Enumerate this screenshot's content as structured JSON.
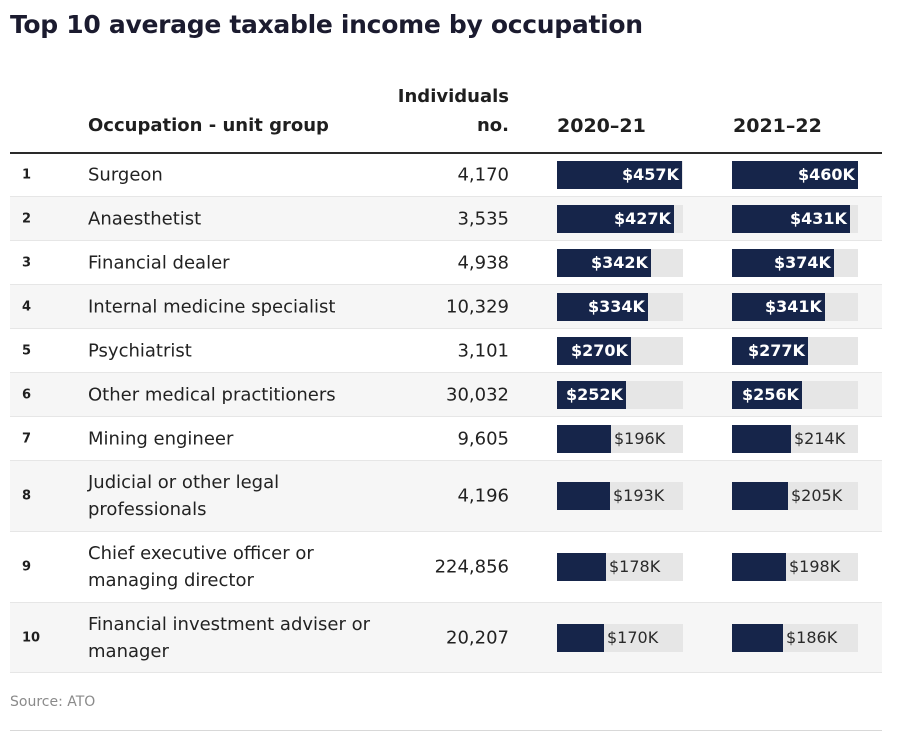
{
  "chart_data": {
    "type": "table",
    "title": "Top 10 average taxable income by occupation",
    "columns": {
      "occupation": "Occupation - unit group",
      "individuals_line1": "Individuals",
      "individuals_line2": "no.",
      "year1": "2020–21",
      "year2": "2021–22"
    },
    "xlim": [
      0,
      460
    ],
    "rows": [
      {
        "rank": "1",
        "occupation": "Surgeon",
        "individuals": "4,170",
        "v1": 457,
        "l1": "$457K",
        "v2": 460,
        "l2": "$460K"
      },
      {
        "rank": "2",
        "occupation": "Anaesthetist",
        "individuals": "3,535",
        "v1": 427,
        "l1": "$427K",
        "v2": 431,
        "l2": "$431K"
      },
      {
        "rank": "3",
        "occupation": "Financial dealer",
        "individuals": "4,938",
        "v1": 342,
        "l1": "$342K",
        "v2": 374,
        "l2": "$374K"
      },
      {
        "rank": "4",
        "occupation": "Internal medicine specialist",
        "individuals": "10,329",
        "v1": 334,
        "l1": "$334K",
        "v2": 341,
        "l2": "$341K"
      },
      {
        "rank": "5",
        "occupation": "Psychiatrist",
        "individuals": "3,101",
        "v1": 270,
        "l1": "$270K",
        "v2": 277,
        "l2": "$277K"
      },
      {
        "rank": "6",
        "occupation": "Other medical practitioners",
        "individuals": "30,032",
        "v1": 252,
        "l1": "$252K",
        "v2": 256,
        "l2": "$256K"
      },
      {
        "rank": "7",
        "occupation": "Mining engineer",
        "individuals": "9,605",
        "v1": 196,
        "l1": "$196K",
        "v2": 214,
        "l2": "$214K"
      },
      {
        "rank": "8",
        "occupation": "Judicial or other legal professionals",
        "individuals": "4,196",
        "v1": 193,
        "l1": "$193K",
        "v2": 205,
        "l2": "$205K"
      },
      {
        "rank": "9",
        "occupation": "Chief executive officer or managing director",
        "individuals": "224,856",
        "v1": 178,
        "l1": "$178K",
        "v2": 198,
        "l2": "$198K"
      },
      {
        "rank": "10",
        "occupation": "Financial investment adviser or manager",
        "individuals": "20,207",
        "v1": 170,
        "l1": "$170K",
        "v2": 186,
        "l2": "$186K"
      }
    ],
    "source": "Source: ATO"
  }
}
